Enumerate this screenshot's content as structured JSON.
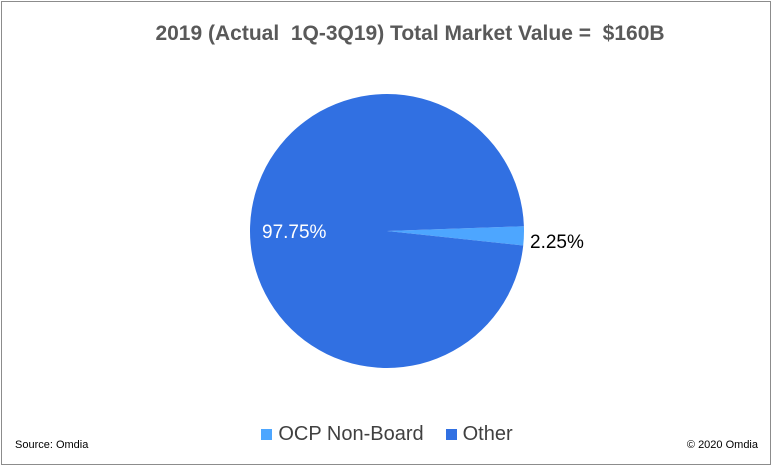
{
  "chart_data": {
    "type": "pie",
    "title": "2019 (Actual  1Q-3Q19) Total Market Value =  $160B",
    "slices": [
      {
        "label": "OCP Non-Board",
        "value": 2.25,
        "display": "2.25%",
        "color": "#4da6ff"
      },
      {
        "label": "Other",
        "value": 97.75,
        "display": "97.75%",
        "color": "#3170e2"
      }
    ],
    "legend_position": "bottom"
  },
  "footer": {
    "source": "Source:  Omdia",
    "copyright": "© 2020  Omdia"
  }
}
